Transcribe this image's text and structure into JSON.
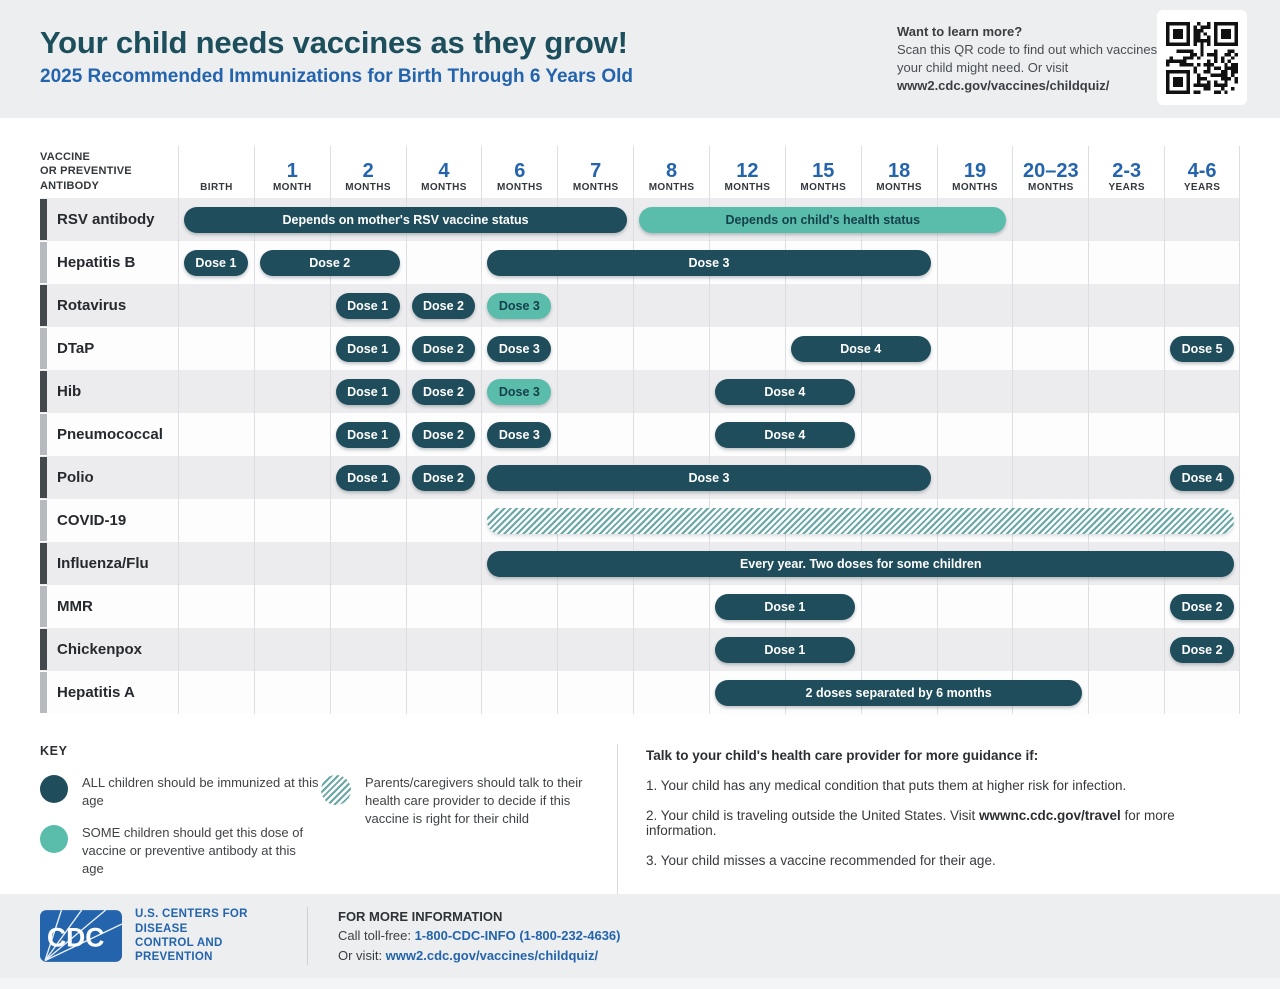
{
  "header": {
    "title": "Your child needs vaccines as they grow!",
    "subtitle": "2025 Recommended Immunizations for Birth Through 6 Years Old",
    "learn_more": {
      "heading": "Want to learn more?",
      "body": "Scan this QR code to find out which vaccines your child might need. Or visit",
      "url": "www2.cdc.gov/vaccines/childquiz/"
    }
  },
  "chart_data": {
    "type": "table",
    "title": "2025 Recommended Immunizations for Birth Through 6 Years Old",
    "corner_lines": [
      "VACCINE",
      "OR PREVENTIVE",
      "ANTIBODY"
    ],
    "column_headers": [
      {
        "num": "",
        "unit": "BIRTH"
      },
      {
        "num": "1",
        "unit": "MONTH"
      },
      {
        "num": "2",
        "unit": "MONTHS"
      },
      {
        "num": "4",
        "unit": "MONTHS"
      },
      {
        "num": "6",
        "unit": "MONTHS"
      },
      {
        "num": "7",
        "unit": "MONTHS"
      },
      {
        "num": "8",
        "unit": "MONTHS"
      },
      {
        "num": "12",
        "unit": "MONTHS"
      },
      {
        "num": "15",
        "unit": "MONTHS"
      },
      {
        "num": "18",
        "unit": "MONTHS"
      },
      {
        "num": "19",
        "unit": "MONTHS"
      },
      {
        "num": "20–23",
        "unit": "MONTHS"
      },
      {
        "num": "2-3",
        "unit": "YEARS"
      },
      {
        "num": "4-6",
        "unit": "YEARS"
      }
    ],
    "rows": [
      {
        "vaccine": "RSV antibody",
        "spans": [
          {
            "label": "Depends on mother's RSV vaccine status",
            "from": 0,
            "to": 5,
            "key": "all"
          },
          {
            "label": "Depends on child's health status",
            "from": 6,
            "to": 10,
            "key": "some"
          }
        ]
      },
      {
        "vaccine": "Hepatitis B",
        "spans": [
          {
            "label": "Dose 1",
            "from": 0,
            "to": 0,
            "key": "all"
          },
          {
            "label": "Dose 2",
            "from": 1,
            "to": 2,
            "key": "all"
          },
          {
            "label": "Dose 3",
            "from": 4,
            "to": 9,
            "key": "all"
          }
        ]
      },
      {
        "vaccine": "Rotavirus",
        "spans": [
          {
            "label": "Dose 1",
            "from": 2,
            "to": 2,
            "key": "all"
          },
          {
            "label": "Dose 2",
            "from": 3,
            "to": 3,
            "key": "all"
          },
          {
            "label": "Dose 3",
            "from": 4,
            "to": 4,
            "key": "some"
          }
        ]
      },
      {
        "vaccine": "DTaP",
        "spans": [
          {
            "label": "Dose 1",
            "from": 2,
            "to": 2,
            "key": "all"
          },
          {
            "label": "Dose 2",
            "from": 3,
            "to": 3,
            "key": "all"
          },
          {
            "label": "Dose 3",
            "from": 4,
            "to": 4,
            "key": "all"
          },
          {
            "label": "Dose 4",
            "from": 8,
            "to": 9,
            "key": "all"
          },
          {
            "label": "Dose 5",
            "from": 13,
            "to": 13,
            "key": "all"
          }
        ]
      },
      {
        "vaccine": "Hib",
        "spans": [
          {
            "label": "Dose 1",
            "from": 2,
            "to": 2,
            "key": "all"
          },
          {
            "label": "Dose 2",
            "from": 3,
            "to": 3,
            "key": "all"
          },
          {
            "label": "Dose 3",
            "from": 4,
            "to": 4,
            "key": "some"
          },
          {
            "label": "Dose 4",
            "from": 7,
            "to": 8,
            "key": "all"
          }
        ]
      },
      {
        "vaccine": "Pneumococcal",
        "spans": [
          {
            "label": "Dose 1",
            "from": 2,
            "to": 2,
            "key": "all"
          },
          {
            "label": "Dose 2",
            "from": 3,
            "to": 3,
            "key": "all"
          },
          {
            "label": "Dose 3",
            "from": 4,
            "to": 4,
            "key": "all"
          },
          {
            "label": "Dose 4",
            "from": 7,
            "to": 8,
            "key": "all"
          }
        ]
      },
      {
        "vaccine": "Polio",
        "spans": [
          {
            "label": "Dose 1",
            "from": 2,
            "to": 2,
            "key": "all"
          },
          {
            "label": "Dose 2",
            "from": 3,
            "to": 3,
            "key": "all"
          },
          {
            "label": "Dose 3",
            "from": 4,
            "to": 9,
            "key": "all"
          },
          {
            "label": "Dose 4",
            "from": 13,
            "to": 13,
            "key": "all"
          }
        ]
      },
      {
        "vaccine": "COVID-19",
        "spans": [
          {
            "label": "",
            "from": 4,
            "to": 13,
            "key": "talk"
          }
        ]
      },
      {
        "vaccine": "Influenza/Flu",
        "spans": [
          {
            "label": "Every year. Two doses for some children",
            "from": 4,
            "to": 13,
            "key": "all"
          }
        ]
      },
      {
        "vaccine": "MMR",
        "spans": [
          {
            "label": "Dose 1",
            "from": 7,
            "to": 8,
            "key": "all"
          },
          {
            "label": "Dose 2",
            "from": 13,
            "to": 13,
            "key": "all"
          }
        ]
      },
      {
        "vaccine": "Chickenpox",
        "spans": [
          {
            "label": "Dose 1",
            "from": 7,
            "to": 8,
            "key": "all"
          },
          {
            "label": "Dose 2",
            "from": 13,
            "to": 13,
            "key": "all"
          }
        ]
      },
      {
        "vaccine": "Hepatitis A",
        "spans": [
          {
            "label": "2 doses separated by 6 months",
            "from": 7,
            "to": 11,
            "key": "all"
          }
        ]
      }
    ]
  },
  "key": {
    "heading": "KEY",
    "all": "ALL children should be immunized at this age",
    "some": "SOME children should get this dose of vaccine or preventive antibody at this age",
    "talk": "Parents/caregivers should talk to their health care provider to decide if this vaccine is right for their child"
  },
  "guidance": {
    "heading": "Talk to your child's health care provider for more guidance if:",
    "items": [
      {
        "num": "1.",
        "pre": "Your child has any medical condition that puts them at higher risk for infection.",
        "bold": "",
        "post": ""
      },
      {
        "num": "2.",
        "pre": "Your child is traveling outside the United States. Visit ",
        "bold": "wwwnc.cdc.gov/travel",
        "post": " for more information."
      },
      {
        "num": "3.",
        "pre": "Your child misses a vaccine recommended for their age.",
        "bold": "",
        "post": ""
      }
    ]
  },
  "footer": {
    "logo_text": "CDC",
    "agency_line1": "U.S. CENTERS FOR DISEASE",
    "agency_line2": "CONTROL AND PREVENTION",
    "info_heading": "FOR MORE INFORMATION",
    "call_label": "Call toll-free: ",
    "phone": "1-800-CDC-INFO (1-800-232-4636)",
    "visit_label": "Or visit: ",
    "url": "www2.cdc.gov/vaccines/childquiz/"
  },
  "colors": {
    "all_dose": "#1f4d5c",
    "some_dose": "#5abcab",
    "hatch_stripe": "#69a6a6",
    "accent_blue": "#2464ad",
    "band_bg": "#eceef0"
  }
}
